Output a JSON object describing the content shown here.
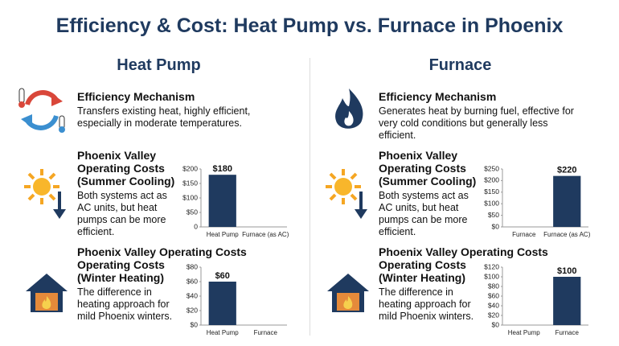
{
  "title": "Efficiency & Cost: Heat Pump vs. Furnace in Phoenix",
  "columns": [
    {
      "heading": "Heat Pump",
      "sections": [
        {
          "title_lines": [
            "Efficiency Mechanism"
          ],
          "text": "Transfers existing heat, highly efficient, especially in moderate temperatures."
        },
        {
          "title_lines": [
            "Phoenix Valley",
            "Operating Costs",
            "(Summer Cooling)"
          ],
          "text": "Both systems act as AC units, but heat pumps can be more efficient.",
          "chart": {
            "type": "bar",
            "categories": [
              "Heat Pump",
              "Furnace (as AC)"
            ],
            "values": [
              180,
              null
            ],
            "value_labels": [
              "$180",
              null
            ],
            "color": "#1f3a5f",
            "ylim": [
              0,
              200
            ],
            "yticks": [
              {
                "value": 0,
                "label": "0"
              },
              {
                "value": 50,
                "label": "$50"
              },
              {
                "value": 100,
                "label": "$100"
              },
              {
                "value": 150,
                "label": "$150"
              },
              {
                "value": 200,
                "label": "$200"
              }
            ]
          }
        },
        {
          "title_lines": [
            "Phoenix Valley Operating Costs",
            "Operating Costs",
            "(Winter Heating)"
          ],
          "text": "The difference in heating approach for mild Phoenix winters.",
          "chart": {
            "type": "bar",
            "categories": [
              "Heat Pump",
              "Furnace"
            ],
            "values": [
              60,
              null
            ],
            "value_labels": [
              "$60",
              null
            ],
            "color": "#1f3a5f",
            "ylim": [
              0,
              80
            ],
            "yticks": [
              {
                "value": 0,
                "label": "$0"
              },
              {
                "value": 20,
                "label": "$20"
              },
              {
                "value": 40,
                "label": "$40"
              },
              {
                "value": 60,
                "label": "$60"
              },
              {
                "value": 80,
                "label": "$80"
              }
            ]
          }
        }
      ]
    },
    {
      "heading": "Furnace",
      "sections": [
        {
          "title_lines": [
            "Efficiency Mechanism"
          ],
          "text": "Generates heat by burning fuel, effective for very cold conditions but generally less efficient."
        },
        {
          "title_lines": [
            "Phoenix Valley",
            "Operating Costs",
            "(Summer Cooling)"
          ],
          "text": "Both systems act as AC units, but heat pumps can be more efficient.",
          "chart": {
            "type": "bar",
            "categories": [
              "Furnace",
              "Furnace (as AC)"
            ],
            "values": [
              null,
              220
            ],
            "value_labels": [
              null,
              "$220"
            ],
            "color": "#1f3a5f",
            "ylim": [
              0,
              250
            ],
            "yticks": [
              {
                "value": 0,
                "label": "$0"
              },
              {
                "value": 50,
                "label": "$50"
              },
              {
                "value": 100,
                "label": "$100"
              },
              {
                "value": 150,
                "label": "$150"
              },
              {
                "value": 200,
                "label": "$200"
              },
              {
                "value": 250,
                "label": "$250"
              }
            ]
          }
        },
        {
          "title_lines": [
            "Phoenix Valley Operating Costs",
            "Operating Costs",
            "(Winter Heating)"
          ],
          "text": "The difference in heating approach for mild Phoenix winters.",
          "chart": {
            "type": "bar",
            "categories": [
              "Heat Pump",
              "Furnace"
            ],
            "values": [
              null,
              100
            ],
            "value_labels": [
              null,
              "$100"
            ],
            "color": "#1f3a5f",
            "ylim": [
              0,
              120
            ],
            "yticks": [
              {
                "value": 0,
                "label": "$0"
              },
              {
                "value": 20,
                "label": "$20"
              },
              {
                "value": 40,
                "label": "$40"
              },
              {
                "value": 60,
                "label": "$60"
              },
              {
                "value": 80,
                "label": "$80"
              },
              {
                "value": 100,
                "label": "$100"
              },
              {
                "value": 120,
                "label": "$120"
              }
            ]
          }
        }
      ]
    }
  ]
}
